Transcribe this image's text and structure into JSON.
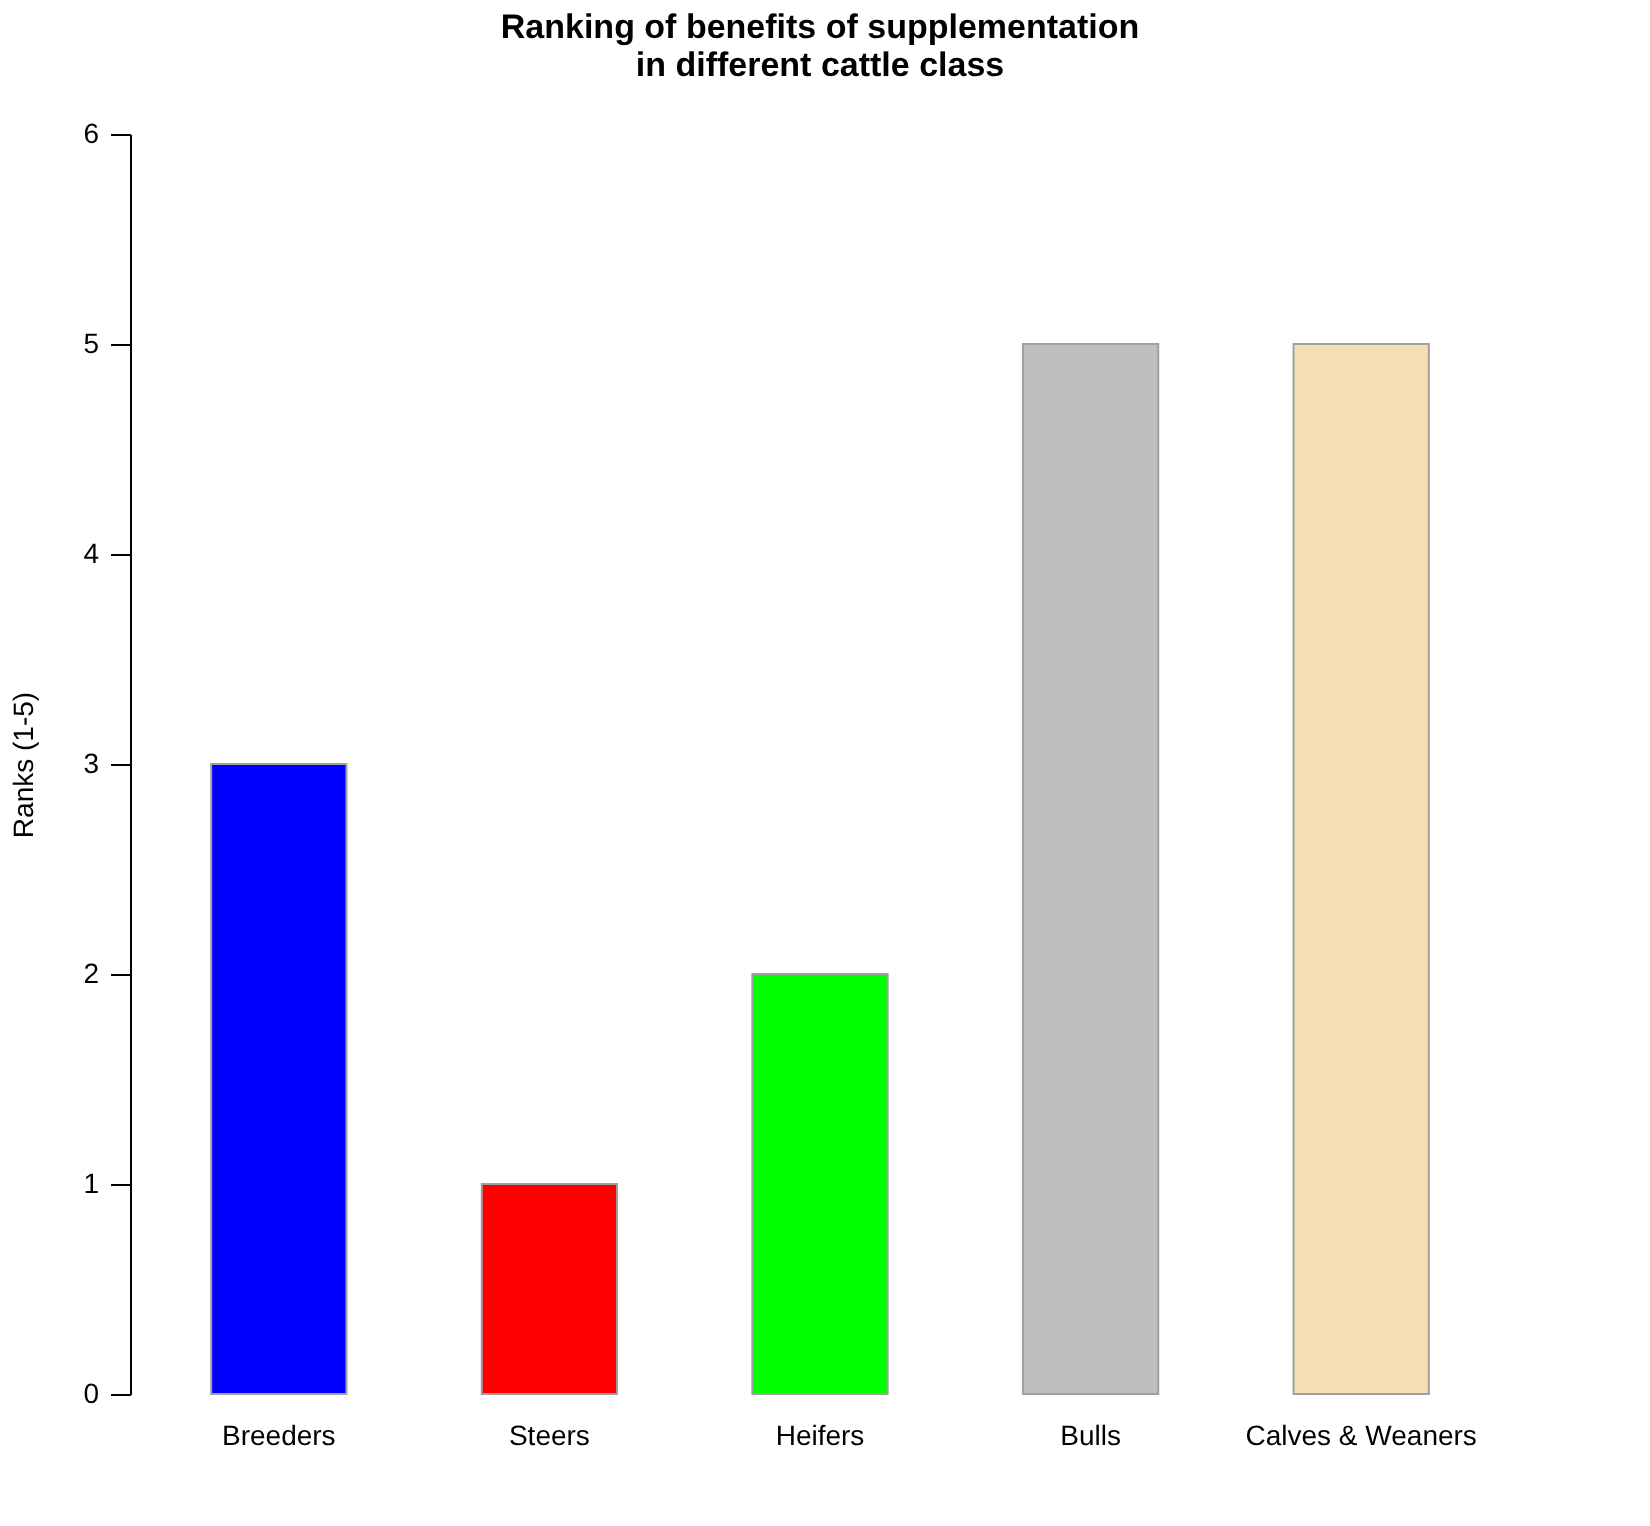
{
  "chart_data": {
    "type": "bar",
    "title": "Ranking of benefits of supplementation\nin different cattle class",
    "ylabel": "Ranks (1-5)",
    "categories": [
      "Breeders",
      "Steers",
      "Heifers",
      "Bulls",
      "Calves & Weaners"
    ],
    "values": [
      3,
      1,
      2,
      5,
      5
    ],
    "colors": [
      "#0000ff",
      "#ff0000",
      "#00ff00",
      "#bebebe",
      "#f5deb3"
    ],
    "ylim": [
      0,
      6
    ],
    "yticks": [
      0,
      1,
      2,
      3,
      4,
      5,
      6
    ]
  }
}
